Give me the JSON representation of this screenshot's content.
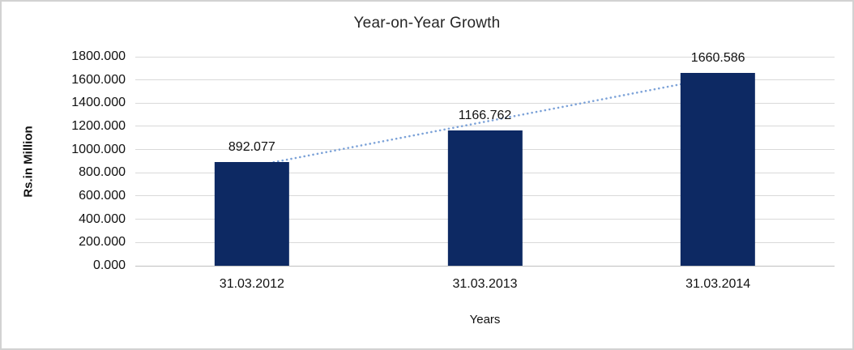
{
  "chart_data": {
    "type": "bar",
    "title": "Year-on-Year Growth",
    "xlabel": "Years",
    "ylabel": "Rs.in Million",
    "categories": [
      "31.03.2012",
      "31.03.2013",
      "31.03.2014"
    ],
    "values": [
      892.077,
      1166.762,
      1660.586
    ],
    "data_labels": [
      "892.077",
      "1166.762",
      "1660.586"
    ],
    "ylim": [
      0,
      1800
    ],
    "ytick_labels": [
      "1800.000",
      "1600.000",
      "1400.000",
      "1200.000",
      "1000.000",
      "800.000",
      "600.000",
      "400.000",
      "200.000",
      "0.000"
    ],
    "grid": true,
    "legend": "none",
    "trendline": {
      "type": "linear",
      "style": "dotted"
    },
    "colors": {
      "bar": "#0D2963",
      "trendline": "#7CA2D8",
      "gridline": "#D9D9D9",
      "axis_line": "#C0C0C0",
      "text": "#111111",
      "frame_border": "#D2D2D2"
    }
  }
}
